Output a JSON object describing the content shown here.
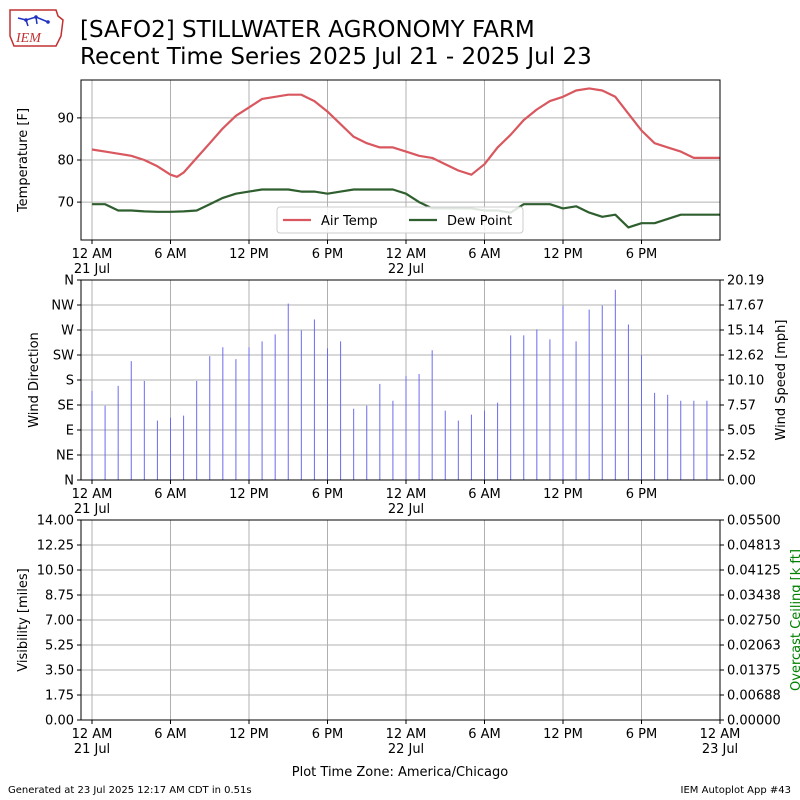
{
  "header": {
    "title_line1": "[SAFO2] STILLWATER AGRONOMY FARM",
    "title_line2": "Recent Time Series 2025 Jul 21 - 2025 Jul 23",
    "logo_text": "IEM"
  },
  "footer": {
    "generated": "Generated at 23 Jul 2025 12:17 AM CDT in 0.51s",
    "app": "IEM Autoplot App #43",
    "timezone": "Plot Time Zone: America/Chicago"
  },
  "colors": {
    "air_temp": "#d9575f",
    "dew_point": "#2f5f2f",
    "wind": "#6b6bf0",
    "grid": "#b0b0b0",
    "ceiling_label": "#008000"
  },
  "chart_data": [
    {
      "type": "line",
      "xlabel": "",
      "ylabel": "Temperature [F]",
      "xlim": [
        0,
        48
      ],
      "ylim": [
        61,
        99
      ],
      "yticks": [
        70,
        80,
        90
      ],
      "xticks": [
        0,
        6,
        12,
        18,
        24,
        30,
        36,
        42
      ],
      "xticklabels": [
        "12 AM\n21 Jul",
        "6 AM",
        "12 PM",
        "6 PM",
        "12 AM\n22 Jul",
        "6 AM",
        "12 PM",
        "6 PM"
      ],
      "grid": true,
      "legend": "lower-center",
      "series": [
        {
          "name": "Air Temp",
          "x": [
            0,
            1,
            2,
            3,
            4,
            5,
            6,
            6.5,
            7,
            8,
            9,
            10,
            11,
            12,
            13,
            14,
            15,
            16,
            17,
            18,
            19,
            20,
            21,
            22,
            23,
            24,
            25,
            26,
            27,
            28,
            29,
            30,
            31,
            32,
            33,
            34,
            35,
            36,
            37,
            38,
            39,
            40,
            41,
            42,
            43,
            44,
            45,
            46,
            47,
            48
          ],
          "y": [
            82.5,
            82,
            81.5,
            81,
            80,
            78.5,
            76.5,
            76,
            77,
            80.5,
            84,
            87.5,
            90.5,
            92.5,
            94.5,
            95,
            95.5,
            95.5,
            94,
            91.5,
            88.5,
            85.5,
            84,
            83,
            83,
            82,
            81,
            80.5,
            79,
            77.5,
            76.5,
            79,
            83,
            86,
            89.5,
            92,
            94,
            95,
            96.5,
            97,
            96.5,
            95,
            91,
            87,
            84,
            83,
            82,
            80.5,
            80.5,
            80.5
          ]
        },
        {
          "name": "Dew Point",
          "x": [
            0,
            1,
            2,
            3,
            4,
            5,
            6,
            7,
            8,
            9,
            10,
            11,
            12,
            13,
            14,
            15,
            16,
            17,
            18,
            19,
            20,
            21,
            22,
            23,
            24,
            25,
            26,
            27,
            28,
            29,
            30,
            31,
            32,
            33,
            34,
            35,
            36,
            37,
            38,
            39,
            40,
            41,
            42,
            43,
            44,
            45,
            46,
            47,
            48
          ],
          "y": [
            69.5,
            69.5,
            68,
            68,
            67.8,
            67.7,
            67.7,
            67.8,
            68,
            69.5,
            71,
            72,
            72.5,
            73,
            73,
            73,
            72.5,
            72.5,
            72,
            72.5,
            73,
            73,
            73,
            73,
            72,
            70,
            68.5,
            68.5,
            68.5,
            68.5,
            68,
            68,
            67.5,
            69.5,
            69.5,
            69.5,
            68.5,
            69,
            67.5,
            66.5,
            67,
            64,
            65,
            65,
            66,
            67,
            67,
            67,
            67
          ]
        }
      ]
    },
    {
      "type": "bar",
      "xlabel": "",
      "ylabel": "Wind Direction",
      "ylabel_right": "Wind Speed [mph]",
      "xlim": [
        0,
        48
      ],
      "ylim_left": [
        0,
        360
      ],
      "yticks_left": [
        "N",
        "NE",
        "E",
        "SE",
        "S",
        "SW",
        "W",
        "NW",
        "N"
      ],
      "ylim_right": [
        0,
        20.19
      ],
      "yticks_right": [
        "0.00",
        "2.52",
        "5.05",
        "7.57",
        "10.10",
        "12.62",
        "15.14",
        "17.67",
        "20.19"
      ],
      "xticks": [
        0,
        6,
        12,
        18,
        24,
        30,
        36,
        42
      ],
      "xticklabels": [
        "12 AM\n21 Jul",
        "6 AM",
        "12 PM",
        "6 PM",
        "12 AM\n22 Jul",
        "6 AM",
        "12 PM",
        "6 PM"
      ],
      "grid": true,
      "series": [
        {
          "name": "",
          "x": [
            0,
            1,
            2,
            3,
            4,
            5,
            6,
            7,
            8,
            9,
            10,
            11,
            12,
            13,
            14,
            15,
            16,
            17,
            18,
            19,
            20,
            21,
            22,
            23,
            24,
            25,
            26,
            27,
            28,
            29,
            30,
            31,
            32,
            33,
            34,
            35,
            36,
            37,
            38,
            39,
            40,
            41,
            42,
            43,
            44,
            45,
            46,
            47
          ],
          "y": [
            9.0,
            7.5,
            9.5,
            12.0,
            10.0,
            6.0,
            6.3,
            6.5,
            10.0,
            12.5,
            13.4,
            12.2,
            13.4,
            14.0,
            14.7,
            17.8,
            15.1,
            16.2,
            13.3,
            14.0,
            7.2,
            7.5,
            9.7,
            8.0,
            10.5,
            10.7,
            13.1,
            7.0,
            6.0,
            6.6,
            7.0,
            7.8,
            14.6,
            14.6,
            15.2,
            14.2,
            17.6,
            14.0,
            17.2,
            17.6,
            19.2,
            15.7,
            12.6,
            8.8,
            8.6,
            8.0,
            8.0,
            8.0
          ]
        }
      ]
    },
    {
      "type": "line",
      "xlabel": "Plot Time Zone: America/Chicago",
      "ylabel": "Visibility [miles]",
      "ylabel_right": "Overcast Ceiling [k ft]",
      "xlim": [
        0,
        48
      ],
      "ylim_left": [
        0,
        14
      ],
      "yticks_left": [
        "0.00",
        "1.75",
        "3.50",
        "5.25",
        "7.00",
        "8.75",
        "10.50",
        "12.25",
        "14.00"
      ],
      "ylim_right": [
        0,
        0.055
      ],
      "yticks_right": [
        "0.00000",
        "0.00688",
        "0.01375",
        "0.02063",
        "0.02750",
        "0.03438",
        "0.04125",
        "0.04813",
        "0.05500"
      ],
      "xticks": [
        0,
        6,
        12,
        18,
        24,
        30,
        36,
        42,
        48
      ],
      "xticklabels": [
        "12 AM\n21 Jul",
        "6 AM",
        "12 PM",
        "6 PM",
        "12 AM\n22 Jul",
        "6 AM",
        "12 PM",
        "6 PM",
        "12 AM\n23 Jul"
      ],
      "grid": true,
      "series": []
    }
  ]
}
